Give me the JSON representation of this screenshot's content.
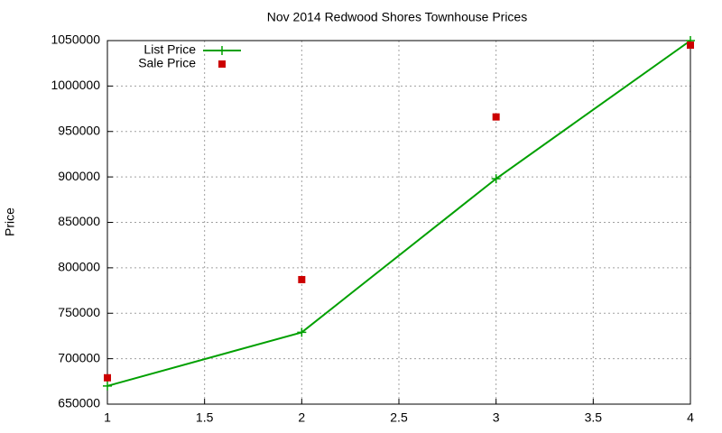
{
  "chart_data": {
    "type": "line",
    "title": "Nov 2014 Redwood Shores Townhouse Prices",
    "y_label": "Price",
    "x": [
      1,
      2,
      3,
      4
    ],
    "series": [
      {
        "name": "List Price",
        "color": "#00a000",
        "style": "linespoints",
        "values": [
          670000,
          729000,
          898000,
          1050000
        ]
      },
      {
        "name": "Sale Price",
        "color": "#cc0000",
        "style": "points",
        "values": [
          679000,
          787000,
          966000,
          1045000
        ]
      }
    ],
    "xlim": [
      1,
      4
    ],
    "xticks": [
      1,
      1.5,
      2,
      2.5,
      3,
      3.5,
      4
    ],
    "ylim": [
      650000,
      1050000
    ],
    "yticks": [
      650000,
      700000,
      750000,
      800000,
      850000,
      900000,
      950000,
      1000000,
      1050000
    ],
    "grid": true,
    "legend": "top-left"
  }
}
